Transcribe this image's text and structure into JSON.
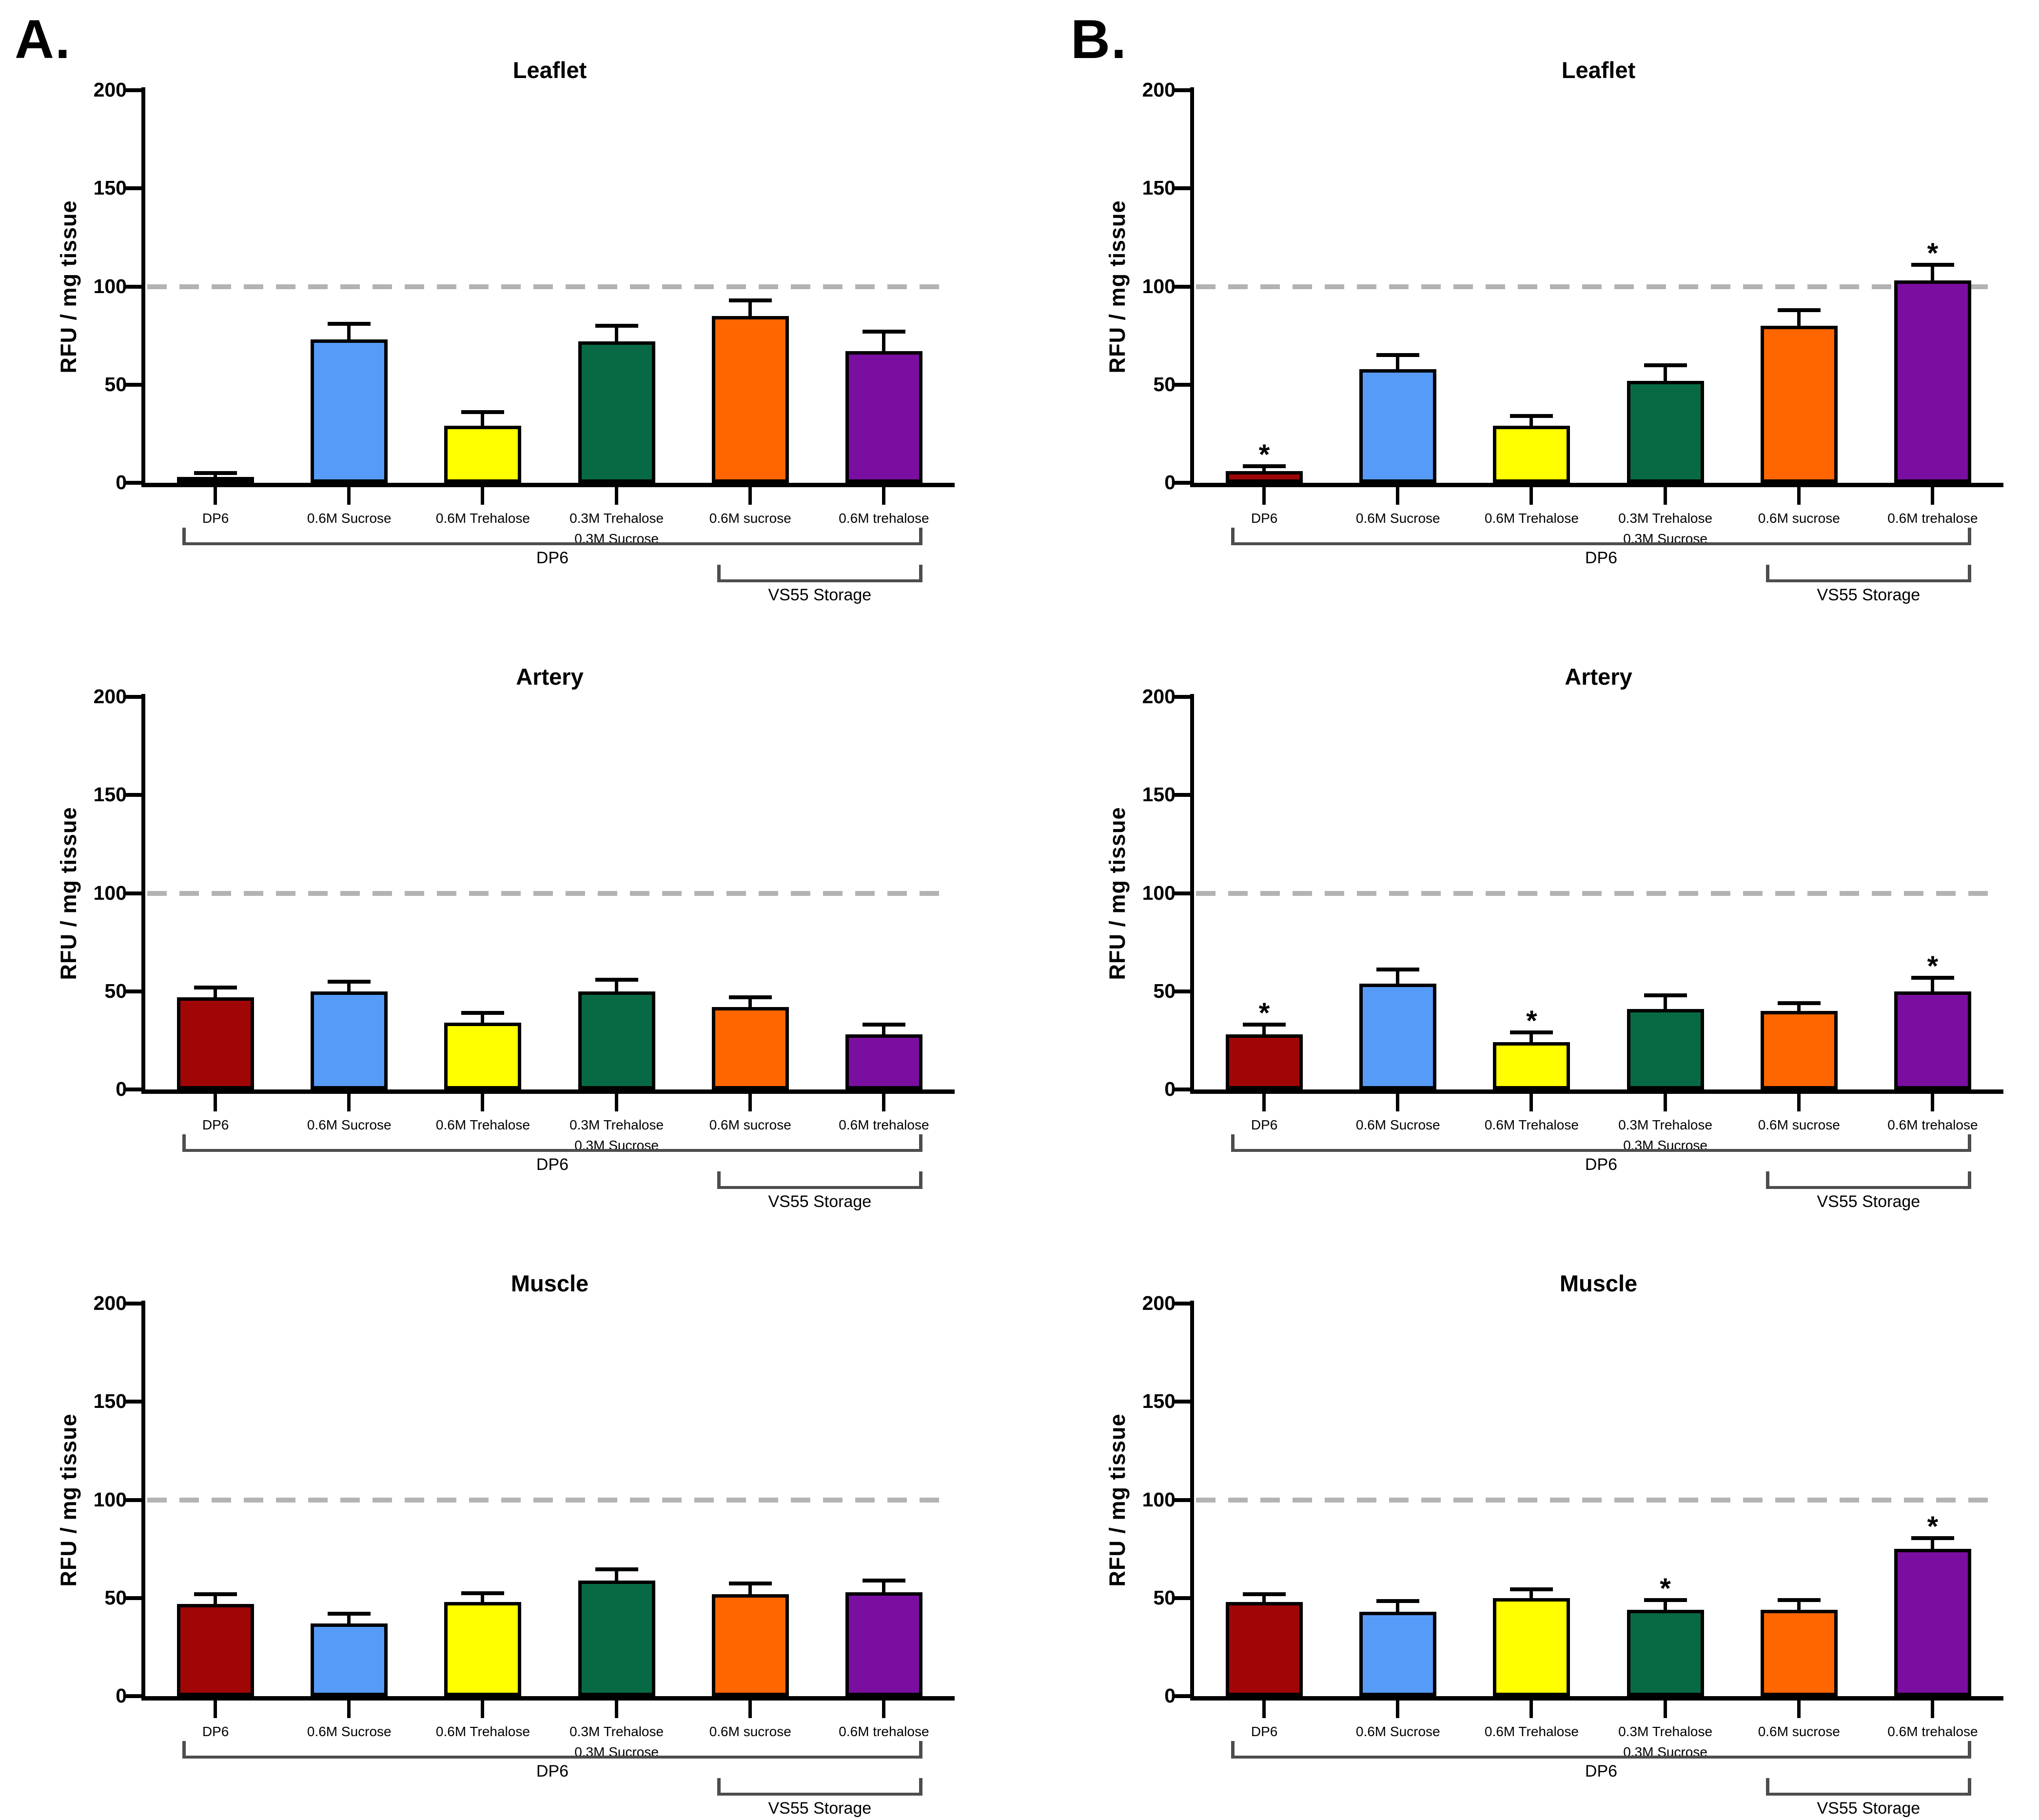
{
  "figure": {
    "panel_a_label": "A.",
    "panel_b_label": "B.",
    "sig_marker": "*",
    "background": "#FFFFFF",
    "axis_color": "#000000",
    "dashed_line_color": "#B3B3B3",
    "bracket_color": "#4D4D4D"
  },
  "chart_data": [
    {
      "type": "bar",
      "panel": "A",
      "row": 0,
      "title": "Leaflet",
      "ylabel": "RFU / mg tissue",
      "ylim": [
        0,
        200
      ],
      "yticks": [
        0,
        50,
        100,
        150,
        200
      ],
      "reference_line_y": 100,
      "grid": false,
      "categories": [
        "DP6",
        "0.6M Sucrose",
        "0.6M Trehalose",
        "0.3M Trehalose\n0.3M Sucrose",
        "0.6M sucrose",
        "0.6M trehalose"
      ],
      "values": [
        3,
        73,
        29,
        72,
        85,
        67
      ],
      "errors": [
        2,
        8,
        7,
        8,
        8,
        10
      ],
      "significant": [
        false,
        false,
        false,
        false,
        false,
        false
      ],
      "bar_colors": [
        "#A00606",
        "#579BF8",
        "#FFFF00",
        "#086A44",
        "#FF6600",
        "#7A0EA0"
      ],
      "brackets": [
        {
          "label": "DP6",
          "from": 0,
          "to": 5
        },
        {
          "label": "VS55 Storage",
          "from": 4,
          "to": 5
        }
      ]
    },
    {
      "type": "bar",
      "panel": "B",
      "row": 0,
      "title": "Leaflet",
      "ylabel": "RFU / mg tissue",
      "ylim": [
        0,
        200
      ],
      "yticks": [
        0,
        50,
        100,
        150,
        200
      ],
      "reference_line_y": 100,
      "grid": false,
      "categories": [
        "DP6",
        "0.6M Sucrose",
        "0.6M Trehalose",
        "0.3M Trehalose\n0.3M Sucrose",
        "0.6M sucrose",
        "0.6M trehalose"
      ],
      "values": [
        6,
        58,
        29,
        52,
        80,
        103
      ],
      "errors": [
        2.5,
        7,
        5,
        8,
        8,
        8
      ],
      "significant": [
        true,
        false,
        false,
        false,
        false,
        true
      ],
      "bar_colors": [
        "#A00606",
        "#579BF8",
        "#FFFF00",
        "#086A44",
        "#FF6600",
        "#7A0EA0"
      ],
      "brackets": [
        {
          "label": "DP6",
          "from": 0,
          "to": 5
        },
        {
          "label": "VS55 Storage",
          "from": 4,
          "to": 5
        }
      ]
    },
    {
      "type": "bar",
      "panel": "A",
      "row": 1,
      "title": "Artery",
      "ylabel": "RFU / mg tissue",
      "ylim": [
        0,
        200
      ],
      "yticks": [
        0,
        50,
        100,
        150,
        200
      ],
      "reference_line_y": 100,
      "grid": false,
      "categories": [
        "DP6",
        "0.6M Sucrose",
        "0.6M Trehalose",
        "0.3M Trehalose\n0.3M Sucrose",
        "0.6M sucrose",
        "0.6M trehalose"
      ],
      "values": [
        47,
        50,
        34,
        50,
        42,
        28
      ],
      "errors": [
        5,
        5,
        5,
        6,
        5,
        5
      ],
      "significant": [
        false,
        false,
        false,
        false,
        false,
        false
      ],
      "bar_colors": [
        "#A00606",
        "#579BF8",
        "#FFFF00",
        "#086A44",
        "#FF6600",
        "#7A0EA0"
      ],
      "brackets": [
        {
          "label": "DP6",
          "from": 0,
          "to": 5
        },
        {
          "label": "VS55 Storage",
          "from": 4,
          "to": 5
        }
      ]
    },
    {
      "type": "bar",
      "panel": "B",
      "row": 1,
      "title": "Artery",
      "ylabel": "RFU / mg tissue",
      "ylim": [
        0,
        200
      ],
      "yticks": [
        0,
        50,
        100,
        150,
        200
      ],
      "reference_line_y": 100,
      "grid": false,
      "categories": [
        "DP6",
        "0.6M Sucrose",
        "0.6M Trehalose",
        "0.3M Trehalose\n0.3M Sucrose",
        "0.6M sucrose",
        "0.6M trehalose"
      ],
      "values": [
        28,
        54,
        24,
        41,
        40,
        50
      ],
      "errors": [
        5,
        7,
        5,
        7,
        4,
        7
      ],
      "significant": [
        true,
        false,
        true,
        false,
        false,
        true
      ],
      "bar_colors": [
        "#A00606",
        "#579BF8",
        "#FFFF00",
        "#086A44",
        "#FF6600",
        "#7A0EA0"
      ],
      "brackets": [
        {
          "label": "DP6",
          "from": 0,
          "to": 5
        },
        {
          "label": "VS55 Storage",
          "from": 4,
          "to": 5
        }
      ]
    },
    {
      "type": "bar",
      "panel": "A",
      "row": 2,
      "title": "Muscle",
      "ylabel": "RFU / mg tissue",
      "ylim": [
        0,
        200
      ],
      "yticks": [
        0,
        50,
        100,
        150,
        200
      ],
      "reference_line_y": 100,
      "grid": false,
      "categories": [
        "DP6",
        "0.6M Sucrose",
        "0.6M Trehalose",
        "0.3M Trehalose\n0.3M Sucrose",
        "0.6M sucrose",
        "0.6M trehalose"
      ],
      "values": [
        47,
        37,
        48,
        59,
        52,
        53
      ],
      "errors": [
        5,
        5,
        4.5,
        5.5,
        5.5,
        6
      ],
      "significant": [
        false,
        false,
        false,
        false,
        false,
        false
      ],
      "bar_colors": [
        "#A00606",
        "#579BF8",
        "#FFFF00",
        "#086A44",
        "#FF6600",
        "#7A0EA0"
      ],
      "brackets": [
        {
          "label": "DP6",
          "from": 0,
          "to": 5
        },
        {
          "label": "VS55 Storage",
          "from": 4,
          "to": 5
        }
      ]
    },
    {
      "type": "bar",
      "panel": "B",
      "row": 2,
      "title": "Muscle",
      "ylabel": "RFU / mg tissue",
      "ylim": [
        0,
        200
      ],
      "yticks": [
        0,
        50,
        100,
        150,
        200
      ],
      "reference_line_y": 100,
      "grid": false,
      "categories": [
        "DP6",
        "0.6M Sucrose",
        "0.6M Trehalose",
        "0.3M Trehalose\n0.3M Sucrose",
        "0.6M sucrose",
        "0.6M trehalose"
      ],
      "values": [
        48,
        43,
        50,
        44,
        44,
        75
      ],
      "errors": [
        4,
        5.5,
        4.5,
        5,
        5,
        5.5
      ],
      "significant": [
        false,
        false,
        false,
        true,
        false,
        true
      ],
      "bar_colors": [
        "#A00606",
        "#579BF8",
        "#FFFF00",
        "#086A44",
        "#FF6600",
        "#7A0EA0"
      ],
      "brackets": [
        {
          "label": "DP6",
          "from": 0,
          "to": 5
        },
        {
          "label": "VS55 Storage",
          "from": 4,
          "to": 5
        }
      ]
    }
  ]
}
